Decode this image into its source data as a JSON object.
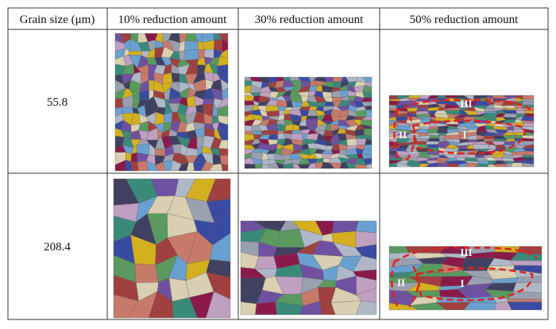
{
  "table": {
    "header": [
      "Grain size (μm)",
      "10% reduction amount",
      "30% reduction amount",
      "50% reduction amount"
    ],
    "rows": [
      {
        "grain_size": "55.8",
        "annotations": [
          "III",
          "II",
          "I"
        ]
      },
      {
        "grain_size": "208.4",
        "annotations": [
          "III",
          "II",
          "I"
        ]
      }
    ]
  }
}
